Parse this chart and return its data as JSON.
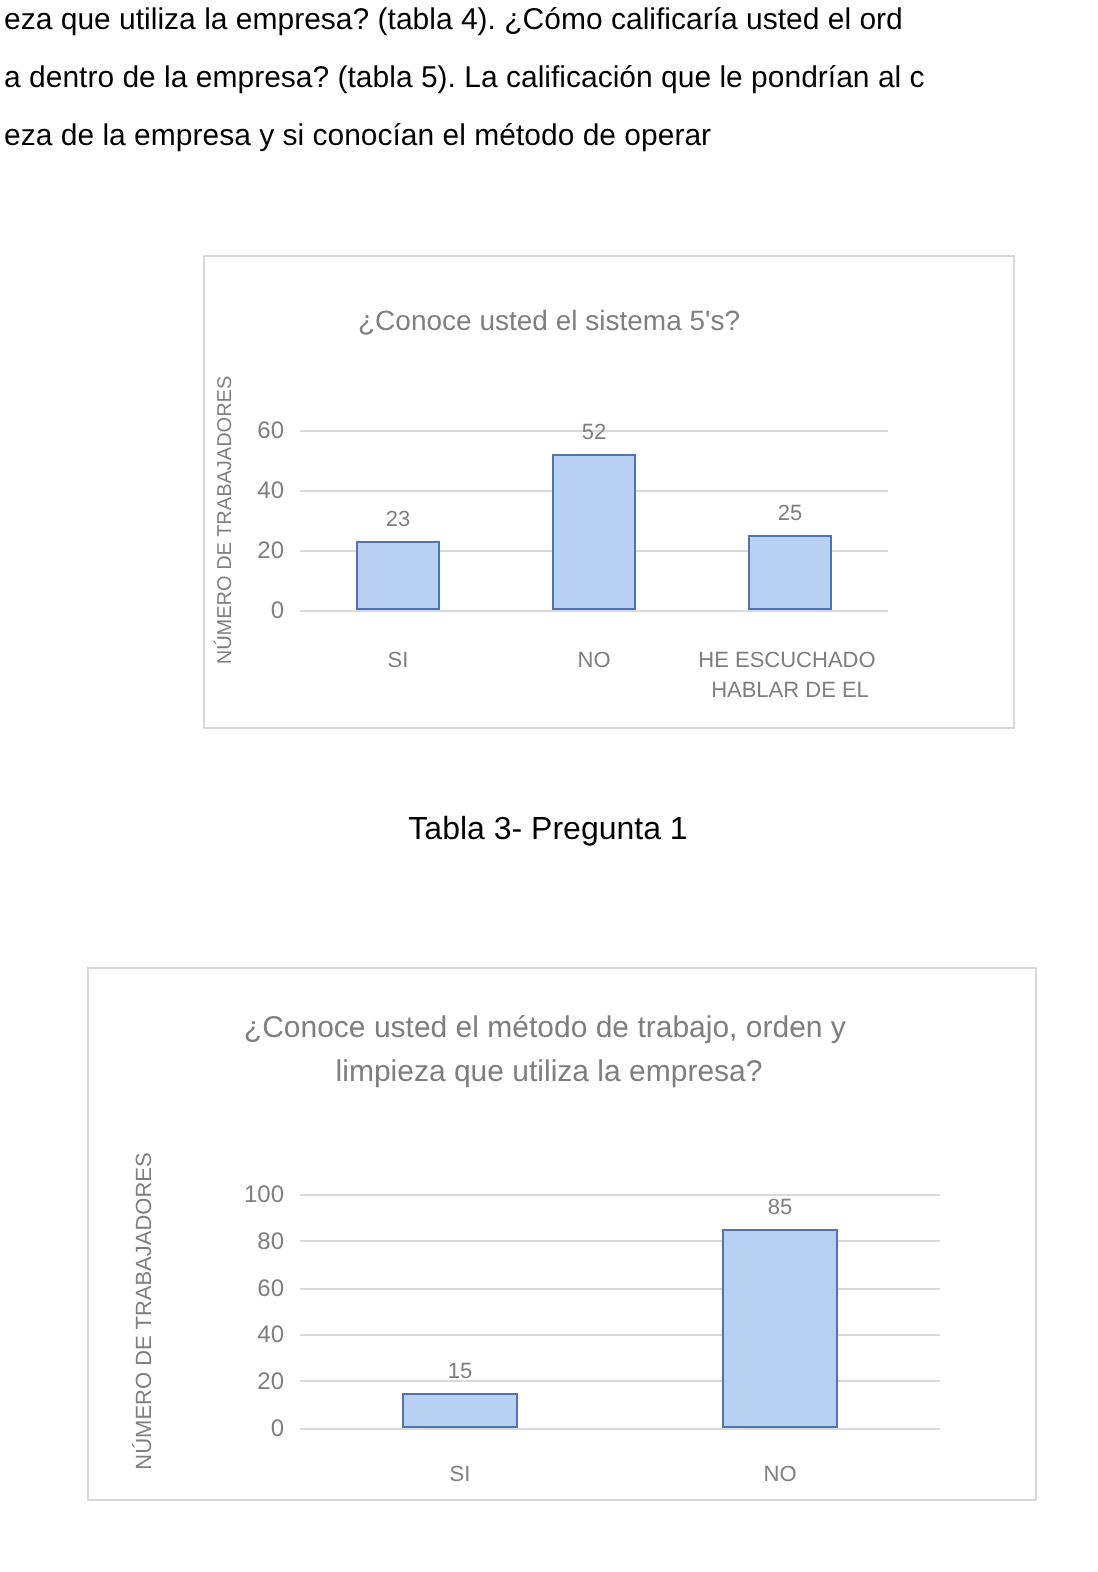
{
  "chart_data": [
    {
      "type": "bar",
      "title": "¿Conoce usted el sistema 5's?",
      "ylabel": "NÚMERO DE TRABAJADORES",
      "categories": [
        "SI",
        "NO",
        "HE ESCUCHADO HABLAR DE EL"
      ],
      "values": [
        23,
        52,
        25
      ],
      "color": "#b8d1f3",
      "ylim": [
        0,
        60
      ],
      "yticks": [
        0,
        20,
        40,
        60
      ],
      "grid": "y",
      "data_labels": true,
      "annotations": [
        "eza que utiliza la empresa? (tabla 4). ¿Cómo calificaría usted el ord",
        "a dentro de la empresa? (tabla 5). La calificación que le pondrían al c",
        "eza de la empresa y si conocían el método de operar",
        "Tabla 3- Pregunta 1"
      ]
    },
    {
      "type": "bar",
      "title": "¿Conoce usted el método de trabajo, orden y limpieza que utiliza la empresa?",
      "ylabel": "NÚMERO DE TRABAJADORES",
      "categories": [
        "SI",
        "NO"
      ],
      "values": [
        15,
        85
      ],
      "color": "#b8d1f3",
      "ylim": [
        0,
        100
      ],
      "yticks": [
        0,
        20,
        40,
        60,
        80,
        100
      ],
      "grid": "y",
      "data_labels": true
    }
  ]
}
